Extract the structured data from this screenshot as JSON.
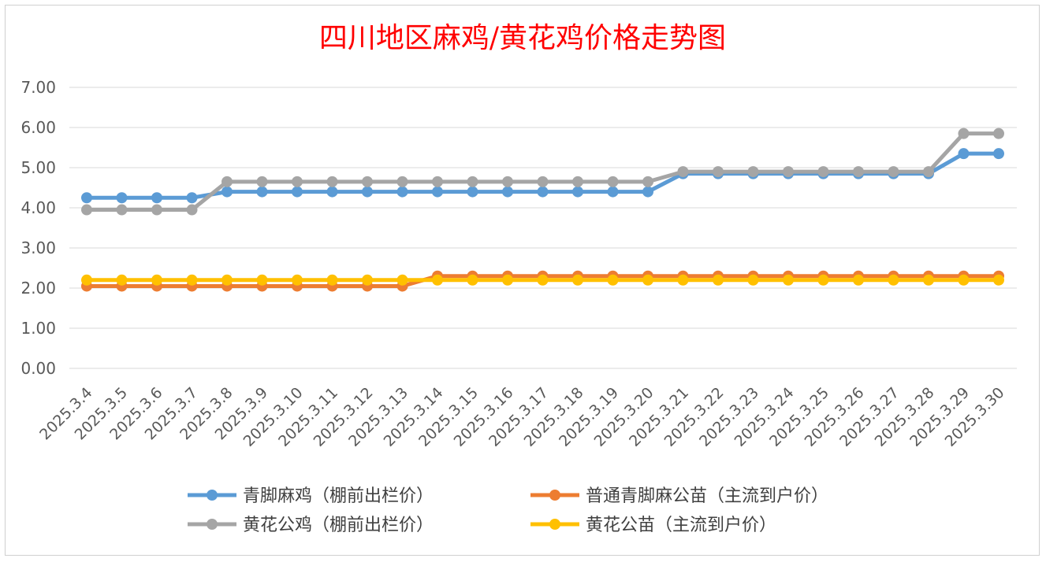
{
  "chart_data": {
    "type": "line",
    "title": "四川地区麻鸡/黄花鸡价格走势图",
    "xlabel": "",
    "ylabel": "",
    "ylim": [
      0,
      7
    ],
    "yticks": [
      "0.00",
      "1.00",
      "2.00",
      "3.00",
      "4.00",
      "5.00",
      "6.00",
      "7.00"
    ],
    "grid": "horizontal",
    "legend_position": "bottom",
    "categories": [
      "2025.3.4",
      "2025.3.5",
      "2025.3.6",
      "2025.3.7",
      "2025.3.8",
      "2025.3.9",
      "2025.3.10",
      "2025.3.11",
      "2025.3.12",
      "2025.3.13",
      "2025.3.14",
      "2025.3.15",
      "2025.3.16",
      "2025.3.17",
      "2025.3.18",
      "2025.3.19",
      "2025.3.20",
      "2025.3.21",
      "2025.3.22",
      "2025.3.23",
      "2025.3.24",
      "2025.3.25",
      "2025.3.26",
      "2025.3.27",
      "2025.3.28",
      "2025.3.29",
      "2025.3.30"
    ],
    "series": [
      {
        "name": "青脚麻鸡（棚前出栏价）",
        "color": "#5b9bd5",
        "values": [
          4.25,
          4.25,
          4.25,
          4.25,
          4.4,
          4.4,
          4.4,
          4.4,
          4.4,
          4.4,
          4.4,
          4.4,
          4.4,
          4.4,
          4.4,
          4.4,
          4.4,
          4.85,
          4.85,
          4.85,
          4.85,
          4.85,
          4.85,
          4.85,
          4.85,
          5.35,
          5.35
        ]
      },
      {
        "name": "普通青脚麻公苗（主流到户价）",
        "color": "#ed7d31",
        "values": [
          2.05,
          2.05,
          2.05,
          2.05,
          2.05,
          2.05,
          2.05,
          2.05,
          2.05,
          2.05,
          2.3,
          2.3,
          2.3,
          2.3,
          2.3,
          2.3,
          2.3,
          2.3,
          2.3,
          2.3,
          2.3,
          2.3,
          2.3,
          2.3,
          2.3,
          2.3,
          2.3
        ]
      },
      {
        "name": "黄花公鸡（棚前出栏价）",
        "color": "#a5a5a5",
        "values": [
          3.95,
          3.95,
          3.95,
          3.95,
          4.65,
          4.65,
          4.65,
          4.65,
          4.65,
          4.65,
          4.65,
          4.65,
          4.65,
          4.65,
          4.65,
          4.65,
          4.65,
          4.9,
          4.9,
          4.9,
          4.9,
          4.9,
          4.9,
          4.9,
          4.9,
          5.85,
          5.85
        ]
      },
      {
        "name": "黄花公苗（主流到户价）",
        "color": "#ffc000",
        "values": [
          2.2,
          2.2,
          2.2,
          2.2,
          2.2,
          2.2,
          2.2,
          2.2,
          2.2,
          2.2,
          2.2,
          2.2,
          2.2,
          2.2,
          2.2,
          2.2,
          2.2,
          2.2,
          2.2,
          2.2,
          2.2,
          2.2,
          2.2,
          2.2,
          2.2,
          2.2,
          2.2
        ]
      }
    ]
  }
}
